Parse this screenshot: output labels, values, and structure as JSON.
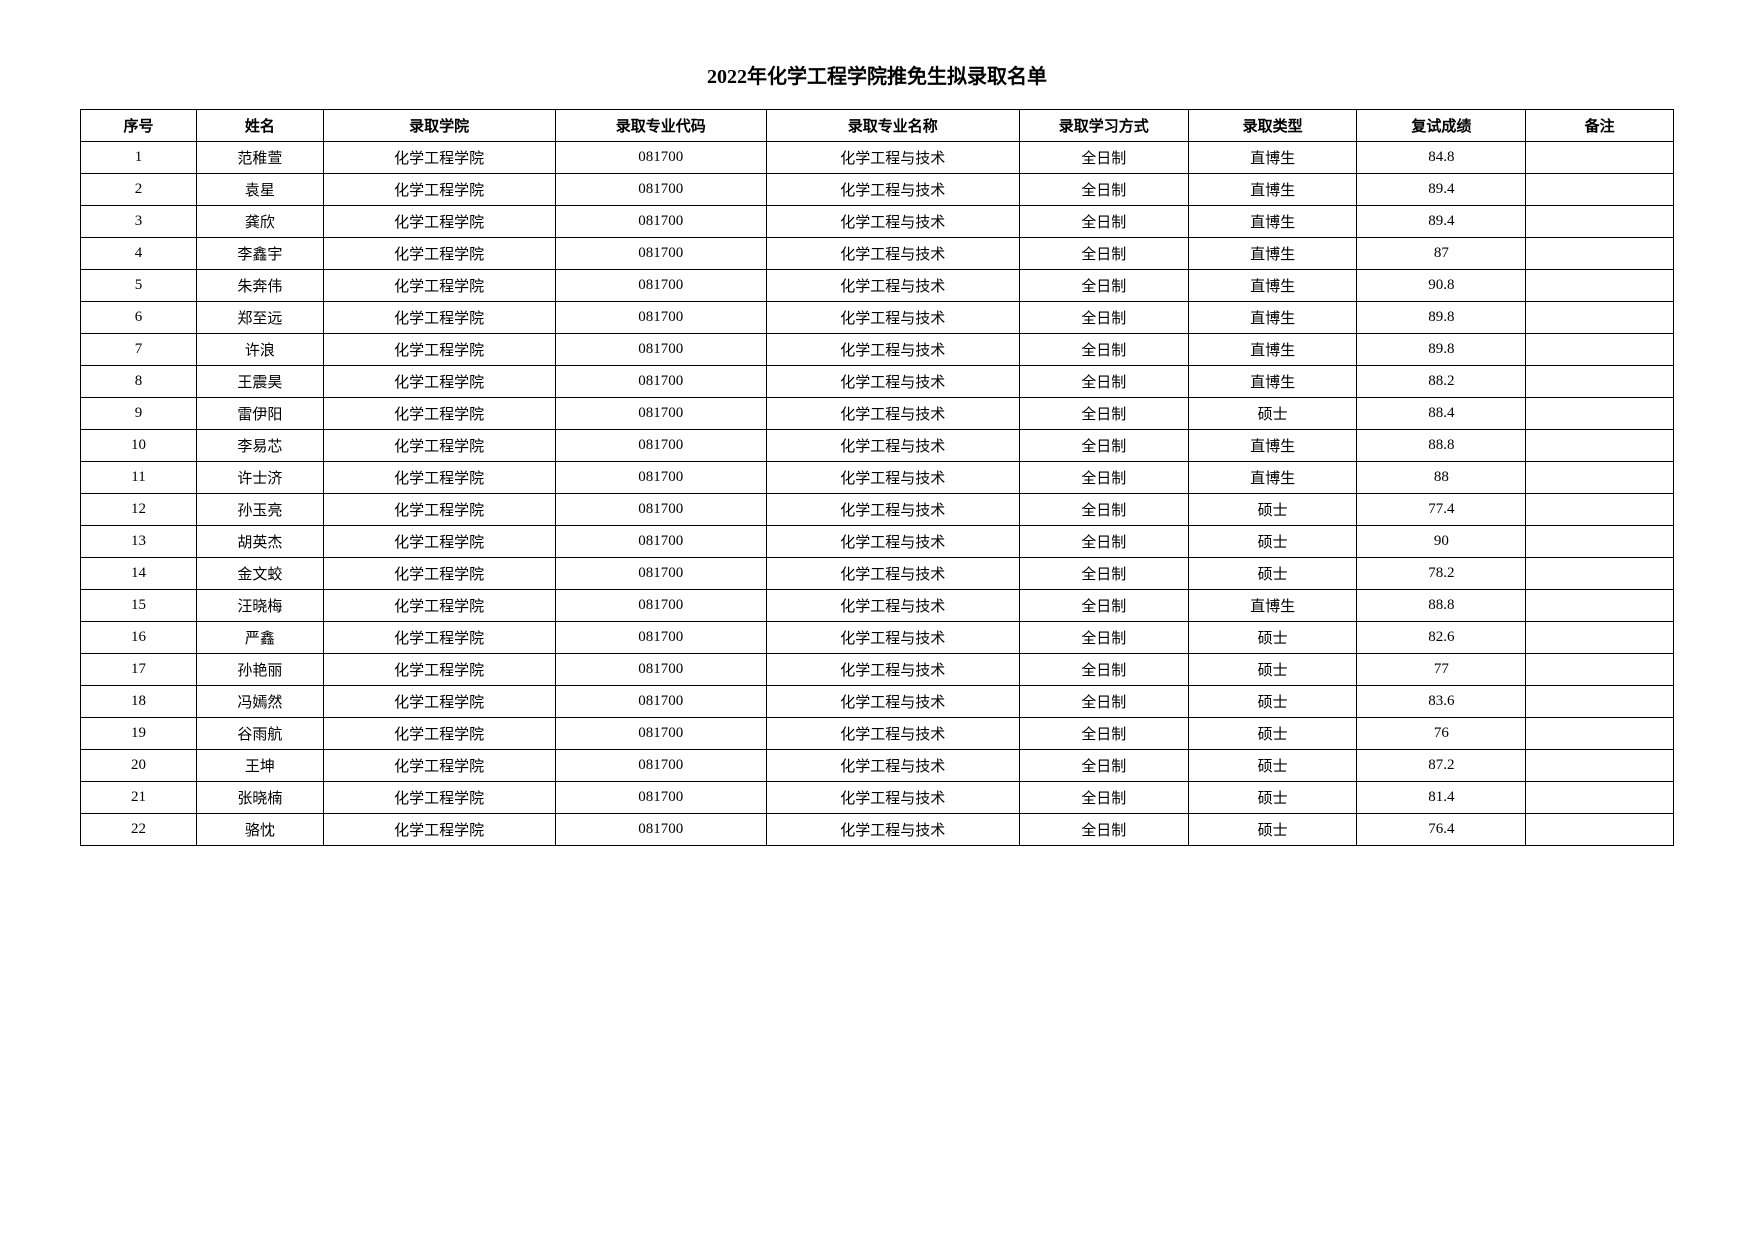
{
  "title": "2022年化学工程学院推免生拟录取名单",
  "table": {
    "columns": [
      {
        "label": "序号",
        "class": "col-seq"
      },
      {
        "label": "姓名",
        "class": "col-name"
      },
      {
        "label": "录取学院",
        "class": "col-college"
      },
      {
        "label": "录取专业代码",
        "class": "col-majorcode"
      },
      {
        "label": "录取专业名称",
        "class": "col-majorname"
      },
      {
        "label": "录取学习方式",
        "class": "col-studymode"
      },
      {
        "label": "录取类型",
        "class": "col-type"
      },
      {
        "label": "复试成绩",
        "class": "col-score"
      },
      {
        "label": "备注",
        "class": "col-remark"
      }
    ],
    "rows": [
      {
        "seq": "1",
        "name": "范稚萱",
        "college": "化学工程学院",
        "majorcode": "081700",
        "majorname": "化学工程与技术",
        "studymode": "全日制",
        "type": "直博生",
        "score": "84.8",
        "remark": ""
      },
      {
        "seq": "2",
        "name": "袁星",
        "college": "化学工程学院",
        "majorcode": "081700",
        "majorname": "化学工程与技术",
        "studymode": "全日制",
        "type": "直博生",
        "score": "89.4",
        "remark": ""
      },
      {
        "seq": "3",
        "name": "龚欣",
        "college": "化学工程学院",
        "majorcode": "081700",
        "majorname": "化学工程与技术",
        "studymode": "全日制",
        "type": "直博生",
        "score": "89.4",
        "remark": ""
      },
      {
        "seq": "4",
        "name": "李鑫宇",
        "college": "化学工程学院",
        "majorcode": "081700",
        "majorname": "化学工程与技术",
        "studymode": "全日制",
        "type": "直博生",
        "score": "87",
        "remark": ""
      },
      {
        "seq": "5",
        "name": "朱奔伟",
        "college": "化学工程学院",
        "majorcode": "081700",
        "majorname": "化学工程与技术",
        "studymode": "全日制",
        "type": "直博生",
        "score": "90.8",
        "remark": ""
      },
      {
        "seq": "6",
        "name": "郑至远",
        "college": "化学工程学院",
        "majorcode": "081700",
        "majorname": "化学工程与技术",
        "studymode": "全日制",
        "type": "直博生",
        "score": "89.8",
        "remark": ""
      },
      {
        "seq": "7",
        "name": "许浪",
        "college": "化学工程学院",
        "majorcode": "081700",
        "majorname": "化学工程与技术",
        "studymode": "全日制",
        "type": "直博生",
        "score": "89.8",
        "remark": ""
      },
      {
        "seq": "8",
        "name": "王震昊",
        "college": "化学工程学院",
        "majorcode": "081700",
        "majorname": "化学工程与技术",
        "studymode": "全日制",
        "type": "直博生",
        "score": "88.2",
        "remark": ""
      },
      {
        "seq": "9",
        "name": "雷伊阳",
        "college": "化学工程学院",
        "majorcode": "081700",
        "majorname": "化学工程与技术",
        "studymode": "全日制",
        "type": "硕士",
        "score": "88.4",
        "remark": ""
      },
      {
        "seq": "10",
        "name": "李易芯",
        "college": "化学工程学院",
        "majorcode": "081700",
        "majorname": "化学工程与技术",
        "studymode": "全日制",
        "type": "直博生",
        "score": "88.8",
        "remark": ""
      },
      {
        "seq": "11",
        "name": "许士济",
        "college": "化学工程学院",
        "majorcode": "081700",
        "majorname": "化学工程与技术",
        "studymode": "全日制",
        "type": "直博生",
        "score": "88",
        "remark": ""
      },
      {
        "seq": "12",
        "name": "孙玉亮",
        "college": "化学工程学院",
        "majorcode": "081700",
        "majorname": "化学工程与技术",
        "studymode": "全日制",
        "type": "硕士",
        "score": "77.4",
        "remark": ""
      },
      {
        "seq": "13",
        "name": "胡英杰",
        "college": "化学工程学院",
        "majorcode": "081700",
        "majorname": "化学工程与技术",
        "studymode": "全日制",
        "type": "硕士",
        "score": "90",
        "remark": ""
      },
      {
        "seq": "14",
        "name": "金文蛟",
        "college": "化学工程学院",
        "majorcode": "081700",
        "majorname": "化学工程与技术",
        "studymode": "全日制",
        "type": "硕士",
        "score": "78.2",
        "remark": ""
      },
      {
        "seq": "15",
        "name": "汪晓梅",
        "college": "化学工程学院",
        "majorcode": "081700",
        "majorname": "化学工程与技术",
        "studymode": "全日制",
        "type": "直博生",
        "score": "88.8",
        "remark": ""
      },
      {
        "seq": "16",
        "name": "严鑫",
        "college": "化学工程学院",
        "majorcode": "081700",
        "majorname": "化学工程与技术",
        "studymode": "全日制",
        "type": "硕士",
        "score": "82.6",
        "remark": ""
      },
      {
        "seq": "17",
        "name": "孙艳丽",
        "college": "化学工程学院",
        "majorcode": "081700",
        "majorname": "化学工程与技术",
        "studymode": "全日制",
        "type": "硕士",
        "score": "77",
        "remark": ""
      },
      {
        "seq": "18",
        "name": "冯嫣然",
        "college": "化学工程学院",
        "majorcode": "081700",
        "majorname": "化学工程与技术",
        "studymode": "全日制",
        "type": "硕士",
        "score": "83.6",
        "remark": ""
      },
      {
        "seq": "19",
        "name": "谷雨航",
        "college": "化学工程学院",
        "majorcode": "081700",
        "majorname": "化学工程与技术",
        "studymode": "全日制",
        "type": "硕士",
        "score": "76",
        "remark": ""
      },
      {
        "seq": "20",
        "name": "王坤",
        "college": "化学工程学院",
        "majorcode": "081700",
        "majorname": "化学工程与技术",
        "studymode": "全日制",
        "type": "硕士",
        "score": "87.2",
        "remark": ""
      },
      {
        "seq": "21",
        "name": "张晓楠",
        "college": "化学工程学院",
        "majorcode": "081700",
        "majorname": "化学工程与技术",
        "studymode": "全日制",
        "type": "硕士",
        "score": "81.4",
        "remark": ""
      },
      {
        "seq": "22",
        "name": "骆忱",
        "college": "化学工程学院",
        "majorcode": "081700",
        "majorname": "化学工程与技术",
        "studymode": "全日制",
        "type": "硕士",
        "score": "76.4",
        "remark": ""
      }
    ]
  }
}
